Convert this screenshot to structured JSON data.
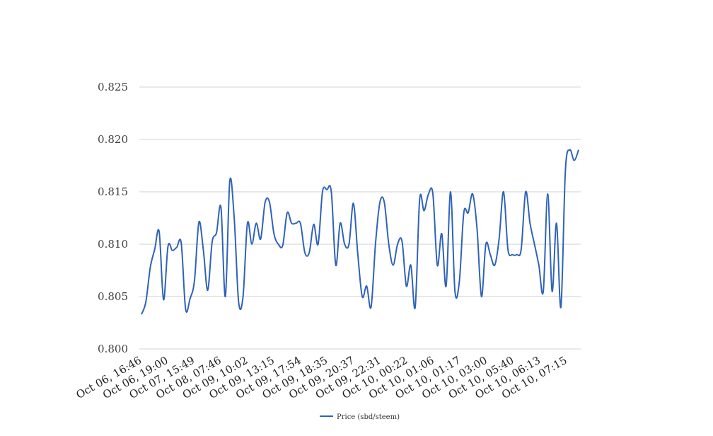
{
  "chart_data": {
    "type": "line",
    "title": "",
    "xlabel": "",
    "ylabel": "",
    "ylim": [
      0.8,
      0.825
    ],
    "y_ticks": [
      "0.800",
      "0.805",
      "0.810",
      "0.815",
      "0.820",
      "0.825"
    ],
    "grid": true,
    "legend_placement": "bottom",
    "x_tick_labels": [
      "Oct 06, 16:46",
      "Oct 06, 19:00",
      "Oct 07, 15:49",
      "Oct 08, 07:46",
      "Oct 09, 10:02",
      "Oct 09, 13:15",
      "Oct 09, 17:54",
      "Oct 09, 18:35",
      "Oct 09, 20:37",
      "Oct 09, 22:31",
      "Oct 10, 00:22",
      "Oct 10, 01:06",
      "Oct 10, 01:17",
      "Oct 10, 03:00",
      "Oct 10, 05:40",
      "Oct 10, 06:13",
      "Oct 10, 07:15"
    ],
    "series": [
      {
        "name": "Price (sbd/steem)",
        "color": "#2f63b8",
        "values": [
          0.8033,
          0.8045,
          0.8078,
          0.8095,
          0.8112,
          0.8047,
          0.8098,
          0.8094,
          0.8097,
          0.8101,
          0.8038,
          0.8048,
          0.8065,
          0.8121,
          0.8095,
          0.8056,
          0.8102,
          0.8111,
          0.8135,
          0.805,
          0.816,
          0.8125,
          0.8045,
          0.805,
          0.812,
          0.81,
          0.812,
          0.8105,
          0.814,
          0.814,
          0.811,
          0.81,
          0.8099,
          0.813,
          0.812,
          0.812,
          0.812,
          0.8092,
          0.8092,
          0.8119,
          0.81,
          0.815,
          0.8152,
          0.815,
          0.808,
          0.812,
          0.81,
          0.81,
          0.8139,
          0.809,
          0.805,
          0.806,
          0.804,
          0.81,
          0.814,
          0.814,
          0.81,
          0.808,
          0.81,
          0.8103,
          0.806,
          0.808,
          0.804,
          0.8143,
          0.8132,
          0.8148,
          0.8148,
          0.808,
          0.811,
          0.806,
          0.815,
          0.8055,
          0.8065,
          0.813,
          0.813,
          0.8148,
          0.8115,
          0.805,
          0.81,
          0.809,
          0.808,
          0.8105,
          0.815,
          0.8095,
          0.809,
          0.809,
          0.8095,
          0.815,
          0.812,
          0.81,
          0.808,
          0.8055,
          0.8148,
          0.8055,
          0.812,
          0.804,
          0.817,
          0.819,
          0.818,
          0.819
        ]
      }
    ]
  }
}
